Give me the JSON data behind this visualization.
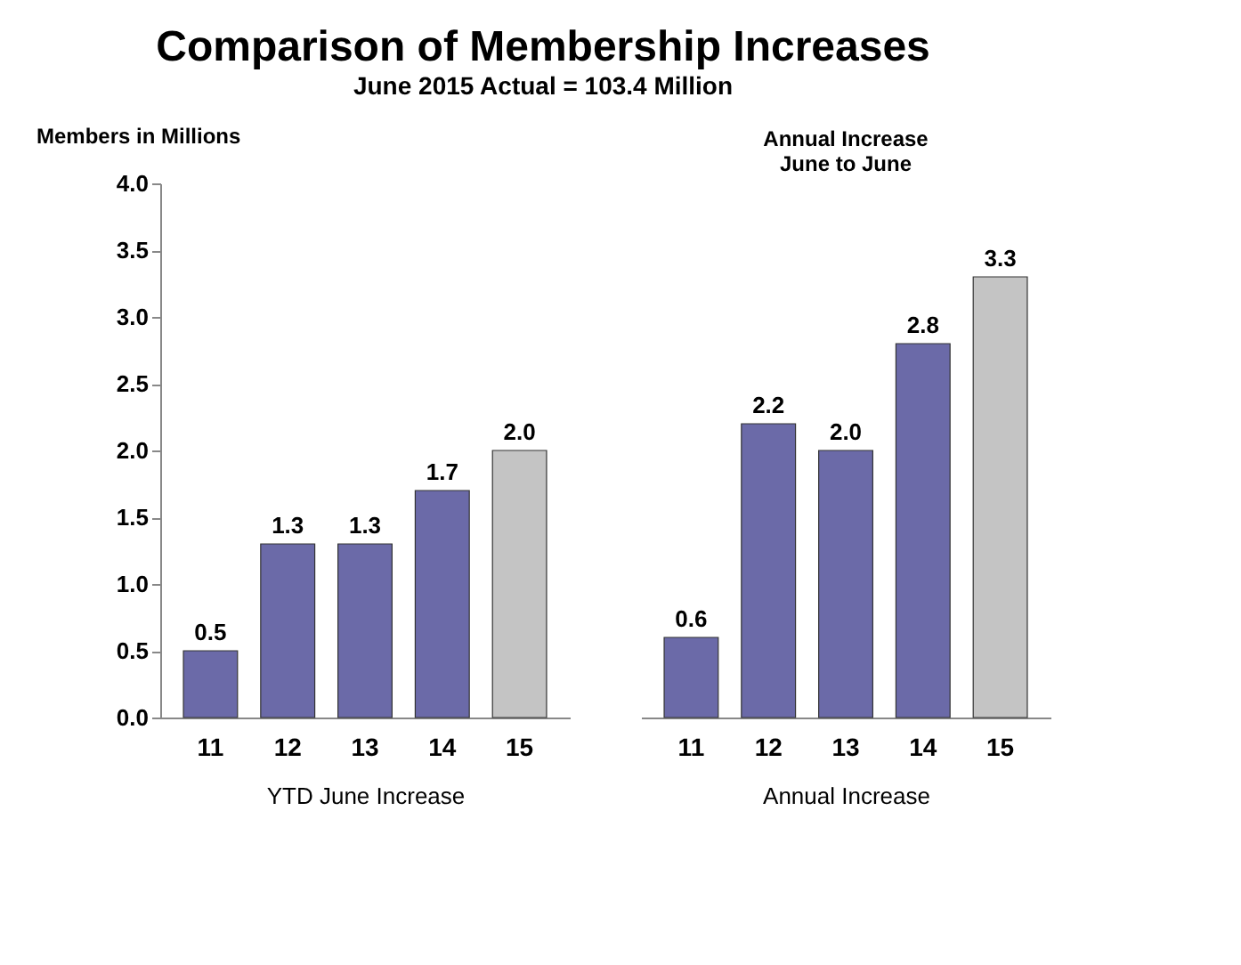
{
  "chart_data": [
    {
      "type": "bar",
      "title": "Comparison of Membership Increases",
      "subtitle": "June 2015 Actual = 103.4 Million",
      "ylabel": "Members in Millions",
      "xlabel": "YTD June Increase",
      "categories": [
        "11",
        "12",
        "13",
        "14",
        "15"
      ],
      "values": [
        0.5,
        1.3,
        1.3,
        1.7,
        2.0
      ],
      "value_labels": [
        "0.5",
        "1.3",
        "1.3",
        "1.7",
        "2.0"
      ],
      "colors": [
        "#6b6aa8",
        "#6b6aa8",
        "#6b6aa8",
        "#6b6aa8",
        "#c4c4c4"
      ],
      "ylim": [
        0,
        4
      ],
      "yticks": [
        {
          "value": 0,
          "label": "0.0"
        },
        {
          "value": 0.5,
          "label": "0.5"
        },
        {
          "value": 1,
          "label": "1.0"
        },
        {
          "value": 1.5,
          "label": "1.5"
        },
        {
          "value": 2,
          "label": "2.0"
        },
        {
          "value": 2.5,
          "label": "2.5"
        },
        {
          "value": 3,
          "label": "3.0"
        },
        {
          "value": 3.5,
          "label": "3.5"
        },
        {
          "value": 4,
          "label": "4.0"
        }
      ],
      "grid": false
    },
    {
      "type": "bar",
      "title": "Annual Increase\nJune to June",
      "xlabel": "Annual Increase",
      "categories": [
        "11",
        "12",
        "13",
        "14",
        "15"
      ],
      "values": [
        0.6,
        2.2,
        2.0,
        2.8,
        3.3
      ],
      "value_labels": [
        "0.6",
        "2.2",
        "2.0",
        "2.8",
        "3.3"
      ],
      "colors": [
        "#6b6aa8",
        "#6b6aa8",
        "#6b6aa8",
        "#6b6aa8",
        "#c4c4c4"
      ],
      "ylim": [
        0,
        4
      ],
      "tick_labels": "x",
      "grid": false
    }
  ]
}
